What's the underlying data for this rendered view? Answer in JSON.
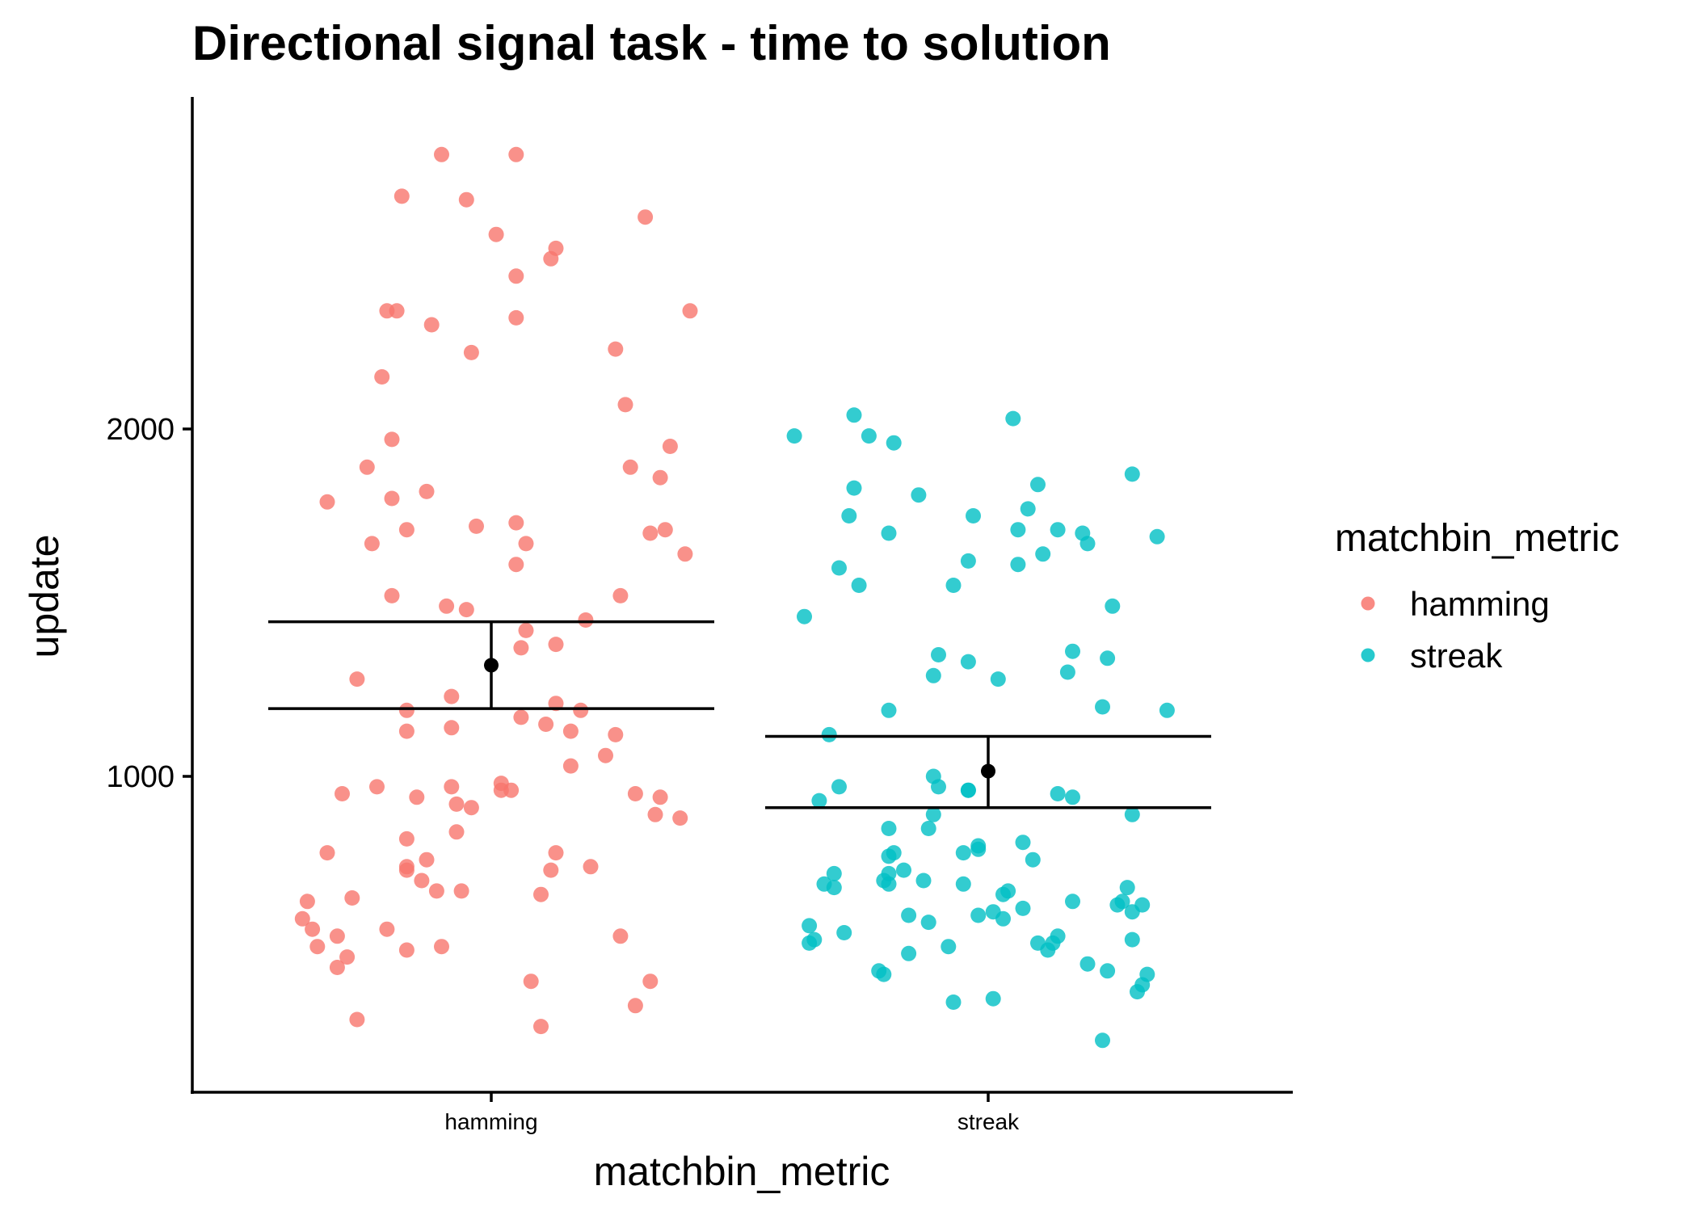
{
  "chart_data": {
    "type": "scatter",
    "title": "Directional signal task - time to solution",
    "xlabel": "matchbin_metric",
    "ylabel": "update",
    "categories": [
      "hamming",
      "streak"
    ],
    "ylim": [
      110,
      2860
    ],
    "y_ticks": [
      1000,
      2000
    ],
    "grid": false,
    "legend": {
      "title": "matchbin_metric",
      "position": "right",
      "entries": [
        "hamming",
        "streak"
      ]
    },
    "colors": {
      "hamming": "#F8766D",
      "streak": "#00BFC4",
      "summary": "#000000"
    },
    "summary": [
      {
        "name": "hamming",
        "mean": 1320,
        "lower": 1195,
        "upper": 1445
      },
      {
        "name": "streak",
        "mean": 1015,
        "lower": 910,
        "upper": 1115
      }
    ],
    "series": [
      {
        "name": "hamming",
        "points": [
          [
            -0.1,
            2790
          ],
          [
            0.05,
            2790
          ],
          [
            -0.18,
            2670
          ],
          [
            -0.05,
            2660
          ],
          [
            0.01,
            2560
          ],
          [
            0.13,
            2520
          ],
          [
            0.31,
            2610
          ],
          [
            0.05,
            2440
          ],
          [
            0.12,
            2490
          ],
          [
            -0.21,
            2340
          ],
          [
            -0.19,
            2340
          ],
          [
            -0.12,
            2300
          ],
          [
            0.05,
            2320
          ],
          [
            0.4,
            2340
          ],
          [
            -0.04,
            2220
          ],
          [
            0.25,
            2230
          ],
          [
            -0.22,
            2150
          ],
          [
            0.27,
            2070
          ],
          [
            -0.2,
            1970
          ],
          [
            -0.25,
            1890
          ],
          [
            0.28,
            1890
          ],
          [
            0.36,
            1950
          ],
          [
            0.34,
            1860
          ],
          [
            -0.33,
            1790
          ],
          [
            -0.2,
            1800
          ],
          [
            -0.13,
            1820
          ],
          [
            -0.17,
            1710
          ],
          [
            -0.24,
            1670
          ],
          [
            -0.03,
            1720
          ],
          [
            0.05,
            1730
          ],
          [
            0.07,
            1670
          ],
          [
            0.32,
            1700
          ],
          [
            0.35,
            1710
          ],
          [
            0.39,
            1640
          ],
          [
            0.05,
            1610
          ],
          [
            -0.2,
            1520
          ],
          [
            -0.09,
            1490
          ],
          [
            -0.05,
            1480
          ],
          [
            0.19,
            1450
          ],
          [
            0.26,
            1520
          ],
          [
            0.07,
            1420
          ],
          [
            0.06,
            1370
          ],
          [
            0.13,
            1380
          ],
          [
            -0.27,
            1280
          ],
          [
            -0.08,
            1230
          ],
          [
            -0.17,
            1190
          ],
          [
            0.13,
            1210
          ],
          [
            0.18,
            1190
          ],
          [
            0.06,
            1170
          ],
          [
            0.11,
            1150
          ],
          [
            -0.08,
            1140
          ],
          [
            -0.17,
            1130
          ],
          [
            0.16,
            1130
          ],
          [
            0.25,
            1120
          ],
          [
            0.23,
            1060
          ],
          [
            0.16,
            1030
          ],
          [
            -0.3,
            950
          ],
          [
            -0.23,
            970
          ],
          [
            -0.15,
            940
          ],
          [
            -0.08,
            970
          ],
          [
            0.02,
            980
          ],
          [
            0.04,
            960
          ],
          [
            0.02,
            960
          ],
          [
            -0.07,
            920
          ],
          [
            -0.04,
            910
          ],
          [
            0.29,
            950
          ],
          [
            0.34,
            940
          ],
          [
            0.33,
            890
          ],
          [
            0.38,
            880
          ],
          [
            -0.07,
            840
          ],
          [
            -0.17,
            820
          ],
          [
            -0.33,
            780
          ],
          [
            -0.13,
            760
          ],
          [
            -0.17,
            740
          ],
          [
            -0.17,
            730
          ],
          [
            0.13,
            780
          ],
          [
            0.12,
            730
          ],
          [
            0.2,
            740
          ],
          [
            -0.14,
            700
          ],
          [
            -0.11,
            670
          ],
          [
            -0.06,
            670
          ],
          [
            -0.28,
            650
          ],
          [
            0.1,
            660
          ],
          [
            -0.37,
            640
          ],
          [
            -0.38,
            590
          ],
          [
            -0.36,
            560
          ],
          [
            -0.31,
            540
          ],
          [
            -0.35,
            510
          ],
          [
            -0.21,
            560
          ],
          [
            -0.17,
            500
          ],
          [
            -0.1,
            510
          ],
          [
            -0.29,
            480
          ],
          [
            -0.31,
            450
          ],
          [
            0.26,
            540
          ],
          [
            0.08,
            410
          ],
          [
            0.32,
            410
          ],
          [
            -0.27,
            300
          ],
          [
            0.1,
            280
          ],
          [
            0.29,
            340
          ]
        ]
      },
      {
        "name": "streak",
        "points": [
          [
            -0.39,
            1980
          ],
          [
            -0.27,
            2040
          ],
          [
            -0.24,
            1980
          ],
          [
            -0.19,
            1960
          ],
          [
            0.05,
            2030
          ],
          [
            0.1,
            1840
          ],
          [
            -0.27,
            1830
          ],
          [
            -0.14,
            1810
          ],
          [
            0.29,
            1870
          ],
          [
            -0.28,
            1750
          ],
          [
            -0.2,
            1700
          ],
          [
            -0.03,
            1750
          ],
          [
            0.08,
            1770
          ],
          [
            0.06,
            1710
          ],
          [
            0.14,
            1710
          ],
          [
            0.19,
            1700
          ],
          [
            0.2,
            1670
          ],
          [
            0.34,
            1690
          ],
          [
            -0.04,
            1620
          ],
          [
            0.11,
            1640
          ],
          [
            0.06,
            1610
          ],
          [
            -0.3,
            1600
          ],
          [
            -0.26,
            1550
          ],
          [
            -0.07,
            1550
          ],
          [
            -0.37,
            1460
          ],
          [
            0.25,
            1490
          ],
          [
            -0.1,
            1350
          ],
          [
            -0.04,
            1330
          ],
          [
            0.17,
            1360
          ],
          [
            0.16,
            1300
          ],
          [
            0.02,
            1280
          ],
          [
            -0.11,
            1290
          ],
          [
            0.24,
            1340
          ],
          [
            -0.2,
            1190
          ],
          [
            0.23,
            1200
          ],
          [
            0.36,
            1190
          ],
          [
            -0.32,
            1120
          ],
          [
            -0.3,
            970
          ],
          [
            -0.11,
            1000
          ],
          [
            -0.1,
            970
          ],
          [
            -0.04,
            960
          ],
          [
            -0.04,
            960
          ],
          [
            0.14,
            950
          ],
          [
            0.17,
            940
          ],
          [
            -0.34,
            930
          ],
          [
            -0.11,
            890
          ],
          [
            -0.2,
            850
          ],
          [
            -0.12,
            850
          ],
          [
            0.29,
            890
          ],
          [
            0.07,
            810
          ],
          [
            -0.19,
            780
          ],
          [
            -0.2,
            770
          ],
          [
            -0.05,
            780
          ],
          [
            -0.02,
            790
          ],
          [
            -0.02,
            800
          ],
          [
            0.09,
            760
          ],
          [
            -0.31,
            720
          ],
          [
            -0.2,
            720
          ],
          [
            -0.21,
            700
          ],
          [
            -0.17,
            730
          ],
          [
            -0.13,
            700
          ],
          [
            -0.05,
            690
          ],
          [
            -0.33,
            690
          ],
          [
            -0.31,
            680
          ],
          [
            0.03,
            660
          ],
          [
            0.04,
            670
          ],
          [
            0.17,
            640
          ],
          [
            0.26,
            630
          ],
          [
            0.31,
            630
          ],
          [
            0.28,
            680
          ],
          [
            0.27,
            640
          ],
          [
            0.29,
            610
          ],
          [
            -0.2,
            690
          ],
          [
            -0.16,
            600
          ],
          [
            -0.02,
            600
          ],
          [
            0.01,
            610
          ],
          [
            0.03,
            590
          ],
          [
            0.07,
            620
          ],
          [
            -0.12,
            580
          ],
          [
            -0.36,
            570
          ],
          [
            -0.29,
            550
          ],
          [
            -0.35,
            530
          ],
          [
            -0.36,
            520
          ],
          [
            0.1,
            520
          ],
          [
            0.13,
            520
          ],
          [
            0.14,
            540
          ],
          [
            0.12,
            500
          ],
          [
            0.29,
            530
          ],
          [
            -0.16,
            490
          ],
          [
            -0.08,
            510
          ],
          [
            -0.22,
            440
          ],
          [
            -0.21,
            430
          ],
          [
            0.2,
            460
          ],
          [
            0.24,
            440
          ],
          [
            0.32,
            430
          ],
          [
            0.31,
            400
          ],
          [
            0.3,
            380
          ],
          [
            -0.07,
            350
          ],
          [
            0.01,
            360
          ],
          [
            0.23,
            240
          ]
        ]
      }
    ]
  }
}
